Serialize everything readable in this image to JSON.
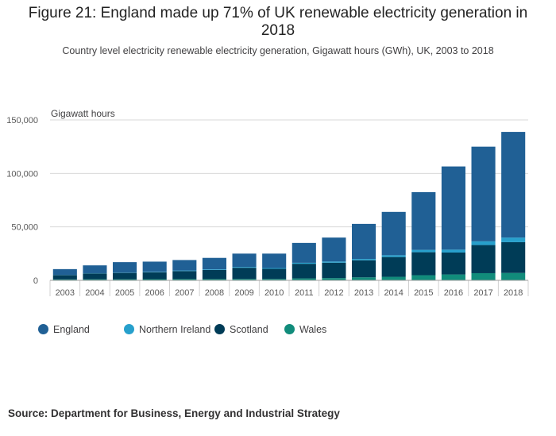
{
  "chart_data": {
    "type": "bar",
    "stacked": true,
    "title": "Figure 21: England made up 71% of UK renewable electricity generation in 2018",
    "subtitle": "Country level electricity renewable electricity generation, Gigawatt hours (GWh), UK, 2003 to 2018",
    "ylabel": "Gigawatt hours",
    "xlabel": "",
    "ylim": [
      0,
      150000
    ],
    "yticks": [
      0,
      50000,
      100000,
      150000
    ],
    "ytick_labels": [
      "0",
      "50,000",
      "100,000",
      "150,000"
    ],
    "categories": [
      "2003",
      "2004",
      "2005",
      "2006",
      "2007",
      "2008",
      "2009",
      "2010",
      "2011",
      "2012",
      "2013",
      "2014",
      "2015",
      "2016",
      "2017",
      "2018"
    ],
    "series": [
      {
        "name": "Wales",
        "color": "#118c7b",
        "values": [
          900,
          1000,
          1000,
          1100,
          1200,
          1200,
          1300,
          1300,
          1800,
          2100,
          2800,
          3300,
          4800,
          5500,
          6700,
          6900
        ]
      },
      {
        "name": "Scotland",
        "color": "#003c57",
        "values": [
          4000,
          5500,
          6000,
          6500,
          7500,
          8500,
          10500,
          9500,
          13700,
          14400,
          16000,
          18500,
          21500,
          20500,
          26300,
          28800
        ]
      },
      {
        "name": "Northern Ireland",
        "color": "#27a0cc",
        "values": [
          150,
          200,
          300,
          400,
          500,
          600,
          700,
          700,
          900,
          1100,
          1200,
          1700,
          2200,
          2700,
          3500,
          4300
        ]
      },
      {
        "name": "England",
        "color": "#206095",
        "values": [
          5450,
          7300,
          9700,
          9500,
          9800,
          10700,
          12500,
          13500,
          18600,
          22400,
          32800,
          40500,
          54000,
          77800,
          88500,
          98800
        ]
      }
    ],
    "legend_order": [
      "England",
      "Northern Ireland",
      "Scotland",
      "Wales"
    ],
    "legend_position": "bottom-left",
    "grid": true
  },
  "source": "Source: Department for Business, Energy and Industrial Strategy"
}
